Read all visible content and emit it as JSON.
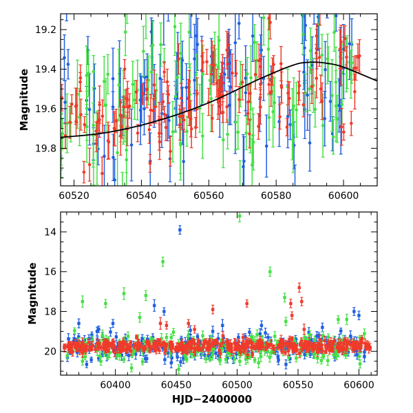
{
  "colors": {
    "blue": "#1f5fe0",
    "green": "#44e044",
    "red": "#f03a2a",
    "model": "#000000"
  },
  "chart_data": [
    {
      "type": "scatter",
      "panel": "top",
      "xlabel": "",
      "ylabel": "Magnitude",
      "xlim": [
        60516,
        60610
      ],
      "ylim": [
        19.12,
        19.99
      ],
      "y_inverted": true,
      "xticks": [
        60520,
        60540,
        60560,
        60580,
        60600
      ],
      "yticks": [
        19.2,
        19.4,
        19.6,
        19.8
      ],
      "xtick_labels": [
        "60520",
        "60540",
        "60560",
        "60580",
        "60600"
      ],
      "ytick_labels": [
        "19.2",
        "19.4",
        "19.6",
        "19.8"
      ],
      "grid": false,
      "series": [
        {
          "color": "blue",
          "error_bars": true,
          "x_range": [
            60516,
            60603
          ],
          "y_center": 19.62,
          "y_trend_to": 19.45,
          "y_scatter": 0.22,
          "n_points": 110
        },
        {
          "color": "green",
          "error_bars": true,
          "x_range": [
            60516,
            60603
          ],
          "y_center": 19.62,
          "y_trend_to": 19.42,
          "y_scatter": 0.2,
          "n_points": 110
        },
        {
          "color": "red",
          "error_bars": true,
          "x_range": [
            60516,
            60605
          ],
          "y_center": 19.68,
          "y_trend_to": 19.38,
          "y_scatter": 0.13,
          "n_points": 150
        }
      ],
      "model_curve": {
        "color": "model",
        "points": [
          [
            60516,
            19.745
          ],
          [
            60530,
            19.72
          ],
          [
            60545,
            19.66
          ],
          [
            60560,
            19.57
          ],
          [
            60575,
            19.45
          ],
          [
            60585,
            19.38
          ],
          [
            60590,
            19.365
          ],
          [
            60595,
            19.37
          ],
          [
            60600,
            19.39
          ],
          [
            60610,
            19.46
          ]
        ]
      }
    },
    {
      "type": "scatter",
      "panel": "bottom",
      "xlabel": "HJD−2400000",
      "ylabel": "Magnitude",
      "xlim": [
        60355,
        60615
      ],
      "ylim": [
        13.0,
        21.2
      ],
      "y_inverted": true,
      "xticks": [
        60400,
        60450,
        60500,
        60550,
        60600
      ],
      "yticks": [
        14,
        16,
        18,
        20
      ],
      "xtick_labels": [
        "60400",
        "60450",
        "60500",
        "60550",
        "60600"
      ],
      "ytick_labels": [
        "14",
        "16",
        "18",
        "20"
      ],
      "grid": false,
      "series": [
        {
          "color": "blue",
          "error_bars": true,
          "x_range": [
            60360,
            60605
          ],
          "y_center": 19.8,
          "y_scatter": 0.35,
          "n_points": 220,
          "outliers": [
            [
              60453,
              13.9
            ],
            [
              60432,
              17.7
            ],
            [
              60440,
              18.0
            ],
            [
              60370,
              18.6
            ],
            [
              60398,
              18.6
            ],
            [
              60596,
              18.0
            ],
            [
              60600,
              18.2
            ],
            [
              60488,
              18.7
            ],
            [
              60520,
              18.7
            ],
            [
              60570,
              18.8
            ],
            [
              60385,
              19.0
            ],
            [
              60480,
              19.0
            ]
          ]
        },
        {
          "color": "green",
          "error_bars": true,
          "x_range": [
            60360,
            60605
          ],
          "y_center": 19.85,
          "y_scatter": 0.35,
          "n_points": 200,
          "outliers": [
            [
              60502,
              13.2
            ],
            [
              60439,
              15.5
            ],
            [
              60527,
              16.0
            ],
            [
              60539,
              17.3
            ],
            [
              60373,
              17.5
            ],
            [
              60392,
              17.6
            ],
            [
              60407,
              17.1
            ],
            [
              60425,
              17.2
            ],
            [
              60420,
              18.3
            ],
            [
              60452,
              20.9
            ],
            [
              60540,
              18.5
            ],
            [
              60583,
              18.4
            ],
            [
              60590,
              18.4
            ]
          ]
        },
        {
          "color": "red",
          "error_bars": true,
          "x_range": [
            60358,
            60610
          ],
          "y_center": 19.75,
          "y_scatter": 0.15,
          "n_points": 420,
          "outliers": [
            [
              60551,
              16.8
            ],
            [
              60553,
              17.5
            ],
            [
              60508,
              17.6
            ],
            [
              60544,
              17.6
            ],
            [
              60480,
              17.9
            ],
            [
              60545,
              18.2
            ],
            [
              60437,
              18.6
            ],
            [
              60442,
              18.7
            ],
            [
              60465,
              18.9
            ],
            [
              60460,
              18.6
            ],
            [
              60555,
              18.9
            ]
          ]
        }
      ]
    }
  ]
}
